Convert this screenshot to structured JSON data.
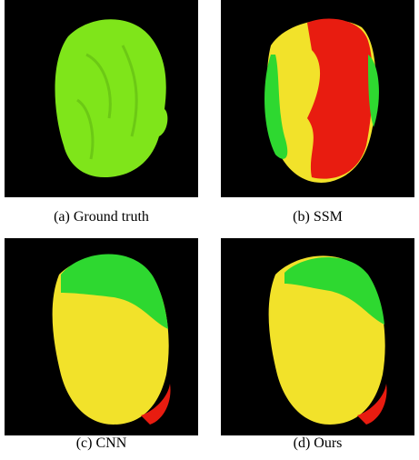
{
  "panels": [
    {
      "caption": "(a) Ground truth"
    },
    {
      "caption": "(b) SSM"
    },
    {
      "caption": "(c) CNN"
    },
    {
      "caption": "(d) Ours"
    }
  ]
}
